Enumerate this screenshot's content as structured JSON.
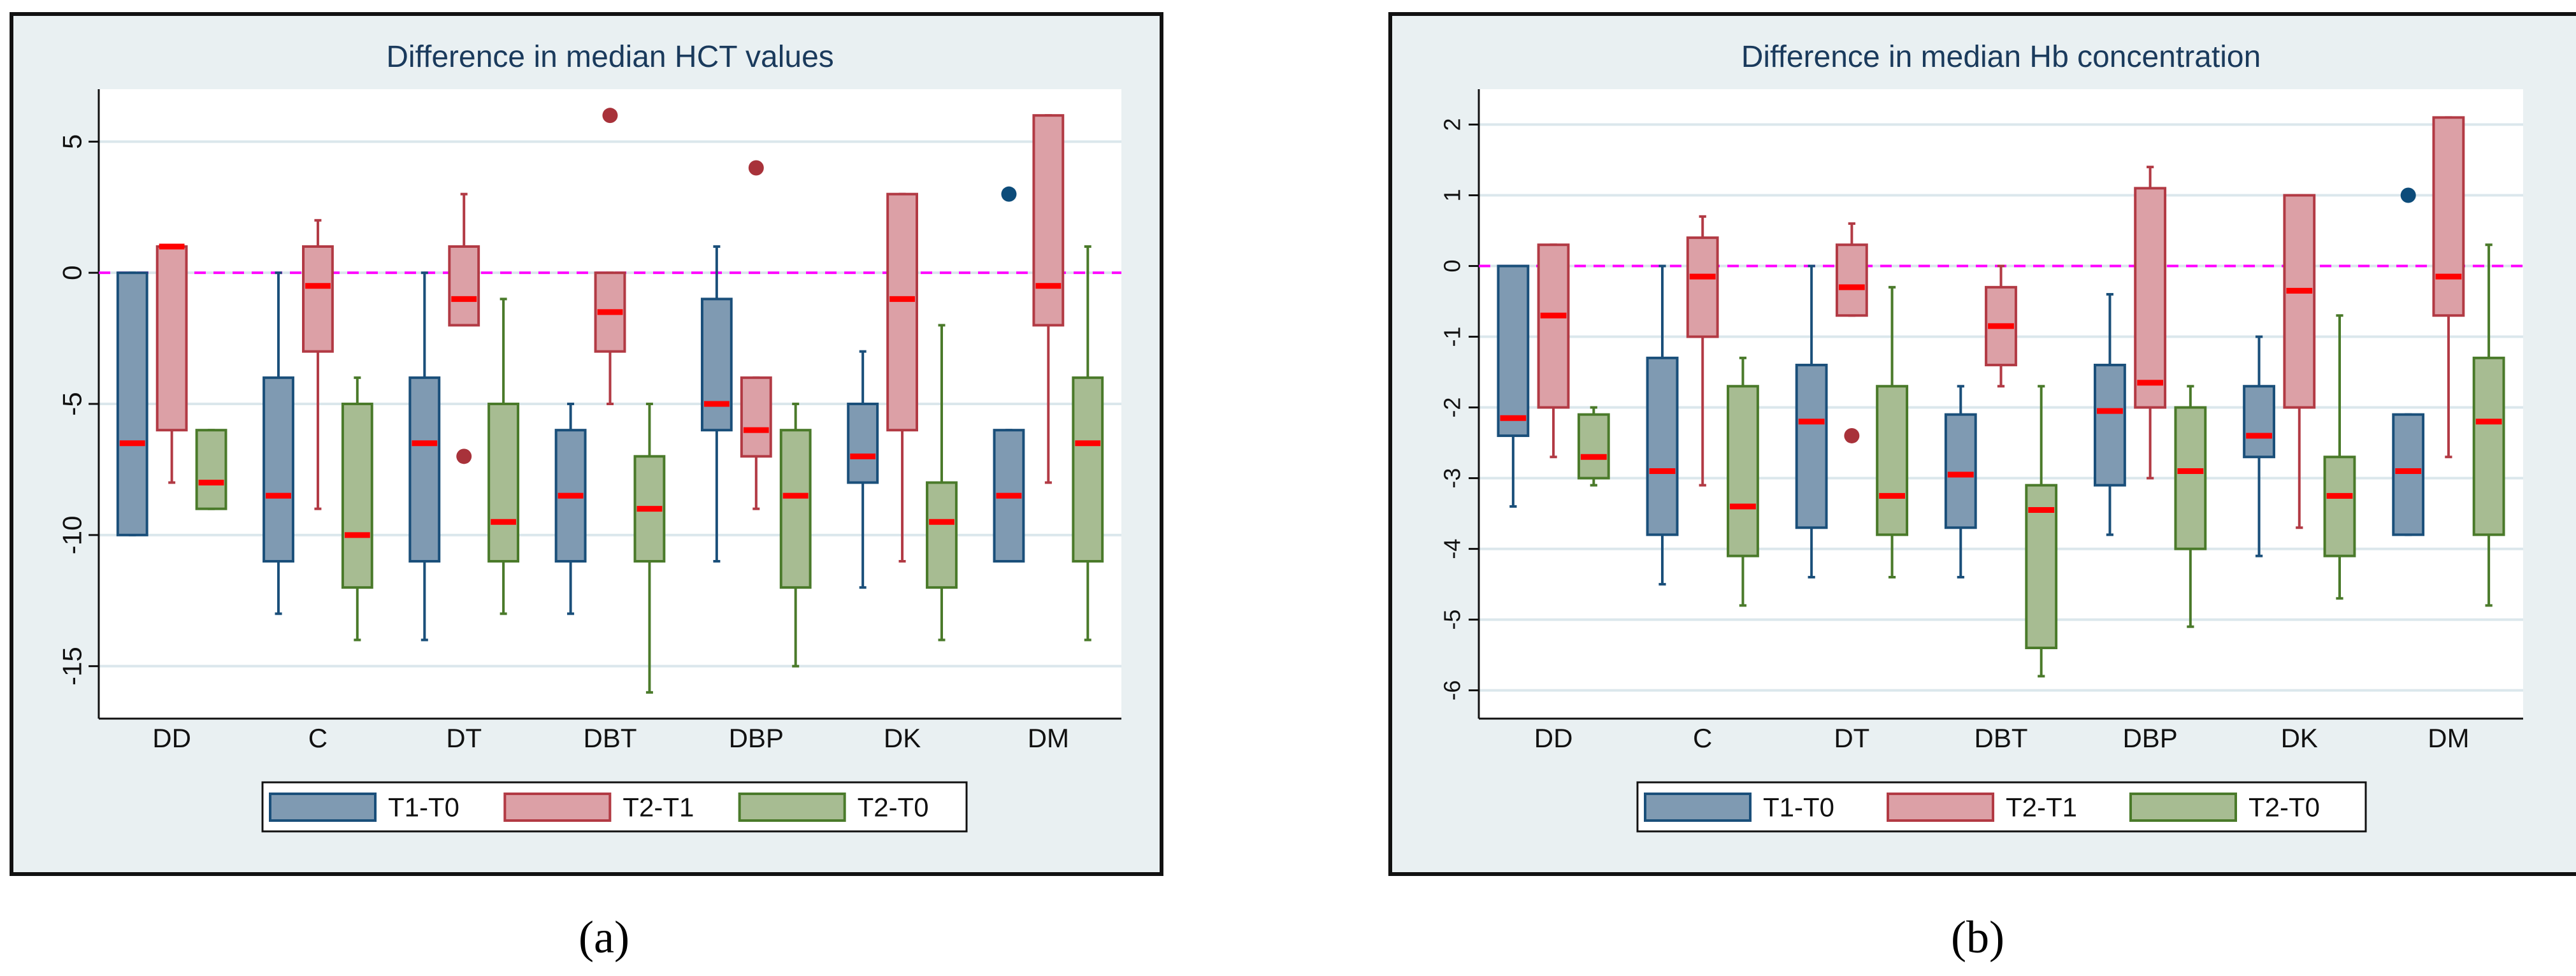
{
  "colors": {
    "panel_bg": "#e9f0f2",
    "plot_bg": "#ffffff",
    "grid": "#dbe7ec",
    "ref_line": "#ff00ff",
    "median": "#ff0000",
    "series_fill": [
      "#7f9ab2",
      "#dca0a6",
      "#a7bc92"
    ],
    "series_stroke": [
      "#1a4f7a",
      "#b23a44",
      "#4a7a2a"
    ],
    "outlier": [
      "#0d4c7a",
      "#a8323a",
      "#a8323a"
    ]
  },
  "chart_data": [
    {
      "type": "box",
      "title": "Difference in median HCT values",
      "caption": "(a)",
      "categories": [
        "DD",
        "C",
        "DT",
        "DBT",
        "DBP",
        "DK",
        "DM"
      ],
      "ylim": [
        -17,
        7
      ],
      "yticks": [
        5,
        0,
        -5,
        -10,
        -15
      ],
      "reference_line": 0,
      "legend": [
        "T1-T0",
        "T2-T1",
        "T2-T0"
      ],
      "series": [
        {
          "name": "T1-T0",
          "boxes": [
            {
              "min": -10,
              "q1": -10,
              "median": -6.5,
              "q3": 0,
              "max": 0,
              "outliers": []
            },
            {
              "min": -13,
              "q1": -11,
              "median": -8.5,
              "q3": -4,
              "max": 0,
              "outliers": []
            },
            {
              "min": -14,
              "q1": -11,
              "median": -6.5,
              "q3": -4,
              "max": 0,
              "outliers": []
            },
            {
              "min": -13,
              "q1": -11,
              "median": -8.5,
              "q3": -6,
              "max": -5,
              "outliers": []
            },
            {
              "min": -11,
              "q1": -6,
              "median": -5,
              "q3": -1,
              "max": 1,
              "outliers": []
            },
            {
              "min": -12,
              "q1": -8,
              "median": -7,
              "q3": -5,
              "max": -3,
              "outliers": []
            },
            {
              "min": -11,
              "q1": -11,
              "median": -8.5,
              "q3": -6,
              "max": -6,
              "outliers": [
                3
              ]
            }
          ]
        },
        {
          "name": "T2-T1",
          "boxes": [
            {
              "min": -8,
              "q1": -6,
              "median": 1,
              "q3": 1,
              "max": 1,
              "outliers": []
            },
            {
              "min": -9,
              "q1": -3,
              "median": -0.5,
              "q3": 1,
              "max": 2,
              "outliers": []
            },
            {
              "min": -2,
              "q1": -2,
              "median": -1,
              "q3": 1,
              "max": 3,
              "outliers": [
                -7
              ]
            },
            {
              "min": -5,
              "q1": -3,
              "median": -1.5,
              "q3": 0,
              "max": 0,
              "outliers": [
                6
              ]
            },
            {
              "min": -9,
              "q1": -7,
              "median": -6,
              "q3": -4,
              "max": -4,
              "outliers": [
                4
              ]
            },
            {
              "min": -11,
              "q1": -6,
              "median": -1,
              "q3": 3,
              "max": 3,
              "outliers": []
            },
            {
              "min": -8,
              "q1": -2,
              "median": -0.5,
              "q3": 6,
              "max": 6,
              "outliers": []
            }
          ]
        },
        {
          "name": "T2-T0",
          "boxes": [
            {
              "min": -9,
              "q1": -9,
              "median": -8,
              "q3": -6,
              "max": -6,
              "outliers": []
            },
            {
              "min": -14,
              "q1": -12,
              "median": -10,
              "q3": -5,
              "max": -4,
              "outliers": []
            },
            {
              "min": -13,
              "q1": -11,
              "median": -9.5,
              "q3": -5,
              "max": -1,
              "outliers": []
            },
            {
              "min": -16,
              "q1": -11,
              "median": -9,
              "q3": -7,
              "max": -5,
              "outliers": []
            },
            {
              "min": -15,
              "q1": -12,
              "median": -8.5,
              "q3": -6,
              "max": -5,
              "outliers": []
            },
            {
              "min": -14,
              "q1": -12,
              "median": -9.5,
              "q3": -8,
              "max": -2,
              "outliers": []
            },
            {
              "min": -14,
              "q1": -11,
              "median": -6.5,
              "q3": -4,
              "max": 1,
              "outliers": []
            }
          ]
        }
      ]
    },
    {
      "type": "box",
      "title": "Difference in median Hb concentration",
      "caption": "(b)",
      "categories": [
        "DD",
        "C",
        "DT",
        "DBT",
        "DBP",
        "DK",
        "DM"
      ],
      "ylim": [
        -6.4,
        2.5
      ],
      "yticks": [
        2,
        1,
        0,
        -1,
        -2,
        -3,
        -4,
        -5,
        -6
      ],
      "reference_line": 0,
      "legend": [
        "T1-T0",
        "T2-T1",
        "T2-T0"
      ],
      "series": [
        {
          "name": "T1-T0",
          "boxes": [
            {
              "min": -3.4,
              "q1": -2.4,
              "median": -2.15,
              "q3": 0,
              "max": 0,
              "outliers": []
            },
            {
              "min": -4.5,
              "q1": -3.8,
              "median": -2.9,
              "q3": -1.3,
              "max": 0,
              "outliers": []
            },
            {
              "min": -4.4,
              "q1": -3.7,
              "median": -2.2,
              "q3": -1.4,
              "max": 0,
              "outliers": []
            },
            {
              "min": -4.4,
              "q1": -3.7,
              "median": -2.95,
              "q3": -2.1,
              "max": -1.7,
              "outliers": []
            },
            {
              "min": -3.8,
              "q1": -3.1,
              "median": -2.05,
              "q3": -1.4,
              "max": -0.4,
              "outliers": []
            },
            {
              "min": -4.1,
              "q1": -2.7,
              "median": -2.4,
              "q3": -1.7,
              "max": -1.0,
              "outliers": []
            },
            {
              "min": -3.8,
              "q1": -3.8,
              "median": -2.9,
              "q3": -2.1,
              "max": -2.1,
              "outliers": [
                1
              ]
            }
          ]
        },
        {
          "name": "T2-T1",
          "boxes": [
            {
              "min": -2.7,
              "q1": -2.0,
              "median": -0.7,
              "q3": 0.3,
              "max": 0.3,
              "outliers": []
            },
            {
              "min": -3.1,
              "q1": -1.0,
              "median": -0.15,
              "q3": 0.4,
              "max": 0.7,
              "outliers": []
            },
            {
              "min": -0.7,
              "q1": -0.7,
              "median": -0.3,
              "q3": 0.3,
              "max": 0.6,
              "outliers": [
                -2.4
              ]
            },
            {
              "min": -1.7,
              "q1": -1.4,
              "median": -0.85,
              "q3": -0.3,
              "max": 0,
              "outliers": []
            },
            {
              "min": -3.0,
              "q1": -2.0,
              "median": -1.65,
              "q3": 1.1,
              "max": 1.4,
              "outliers": []
            },
            {
              "min": -3.7,
              "q1": -2.0,
              "median": -0.35,
              "q3": 1.0,
              "max": 1.0,
              "outliers": []
            },
            {
              "min": -2.7,
              "q1": -0.7,
              "median": -0.15,
              "q3": 2.1,
              "max": 2.1,
              "outliers": []
            }
          ]
        },
        {
          "name": "T2-T0",
          "boxes": [
            {
              "min": -3.1,
              "q1": -3.0,
              "median": -2.7,
              "q3": -2.1,
              "max": -2.0,
              "outliers": []
            },
            {
              "min": -4.8,
              "q1": -4.1,
              "median": -3.4,
              "q3": -1.7,
              "max": -1.3,
              "outliers": []
            },
            {
              "min": -4.4,
              "q1": -3.8,
              "median": -3.25,
              "q3": -1.7,
              "max": -0.3,
              "outliers": []
            },
            {
              "min": -5.8,
              "q1": -5.4,
              "median": -3.45,
              "q3": -3.1,
              "max": -1.7,
              "outliers": []
            },
            {
              "min": -5.1,
              "q1": -4.0,
              "median": -2.9,
              "q3": -2.0,
              "max": -1.7,
              "outliers": []
            },
            {
              "min": -4.7,
              "q1": -4.1,
              "median": -3.25,
              "q3": -2.7,
              "max": -0.7,
              "outliers": []
            },
            {
              "min": -4.8,
              "q1": -3.8,
              "median": -2.2,
              "q3": -1.3,
              "max": 0.3,
              "outliers": []
            }
          ]
        }
      ]
    }
  ]
}
